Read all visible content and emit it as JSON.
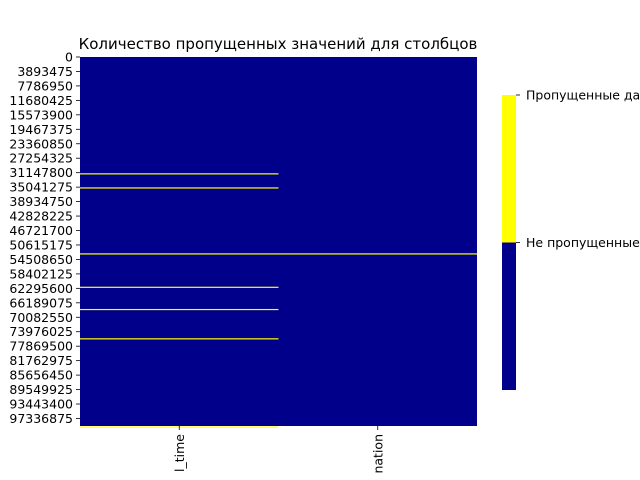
{
  "chart_data": {
    "type": "heatmap",
    "title": "Количество пропущенных значений для столбцов",
    "columns": [
      "l_time",
      "nation"
    ],
    "y_tick_labels": [
      "0",
      "3893475",
      "7786950",
      "11680425",
      "15573900",
      "19467375",
      "23360850",
      "27254325",
      "31147800",
      "35041275",
      "38934750",
      "42828225",
      "46721700",
      "50615175",
      "54508650",
      "58402125",
      "62295600",
      "66189075",
      "70082550",
      "73976025",
      "77869500",
      "81762975",
      "85656450",
      "89549925",
      "93443400",
      "97336875"
    ],
    "row_range": [
      0,
      99540000
    ],
    "missing_rows": {
      "l_time": [
        31500000,
        35300000,
        53100000,
        62100000,
        68100000,
        76000000,
        99800000
      ],
      "nation": [
        53100000
      ]
    },
    "colorbar": {
      "labels": [
        "Не пропущенные данные",
        "Пропущенные данные"
      ],
      "colors": [
        "#00008b",
        "#ffff00"
      ]
    },
    "colors": {
      "present": "#00008b",
      "missing": "#ffff00"
    },
    "grid": false
  }
}
